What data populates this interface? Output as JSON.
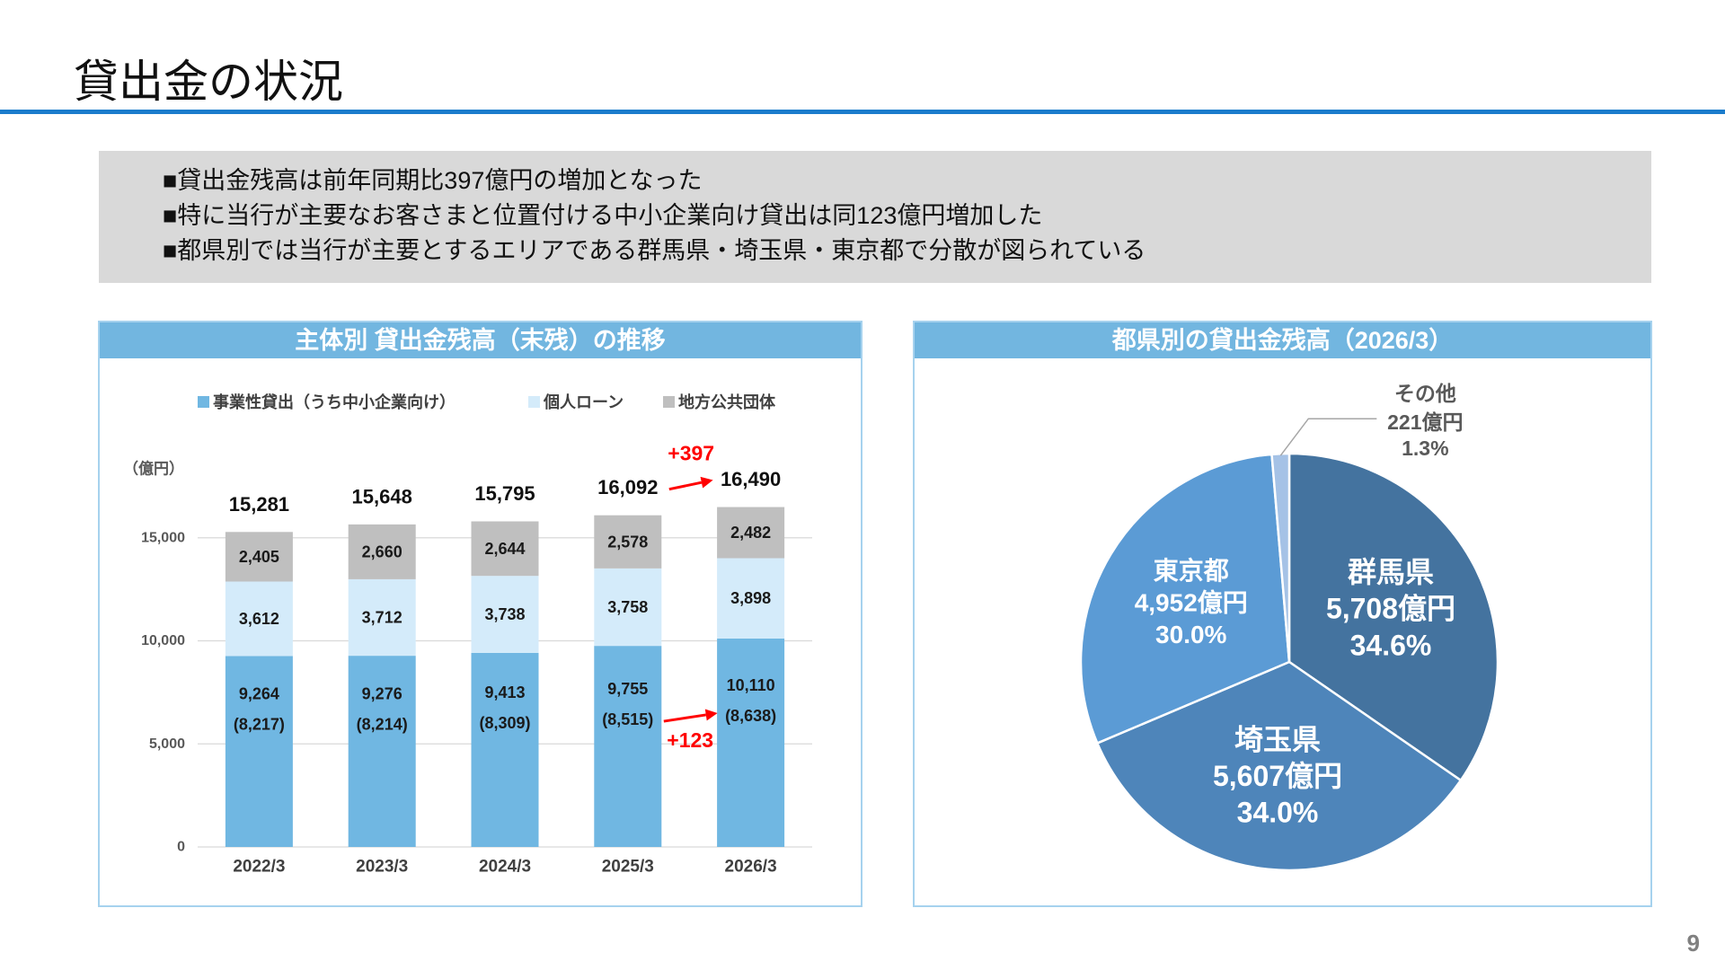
{
  "title": "貸出金の状況",
  "page_number": "9",
  "colors": {
    "accent": "#1b7ccc",
    "panel_header": "#72b6e0",
    "summary_background": "#d9d9d9"
  },
  "summary": {
    "lines": [
      "■貸出金残高は前年同期比397億円の増加となった",
      "■特に当行が主要なお客さまと位置付ける中小企業向け貸出は同123億円増加した",
      "■都県別では当行が主要とするエリアである群馬県・埼玉県・東京都で分散が図られている"
    ]
  },
  "chart_data": [
    {
      "type": "bar",
      "stacked": true,
      "title": "主体別 貸出金残高（末残）の推移",
      "y_unit": "（億円）",
      "categories": [
        "2022/3",
        "2023/3",
        "2024/3",
        "2025/3",
        "2026/3"
      ],
      "series": [
        {
          "name": "事業性貸出（うち中小企業向け）",
          "values": [
            9264,
            9276,
            9413,
            9755,
            10110
          ],
          "sub_values": [
            8217,
            8214,
            8309,
            8515,
            8638
          ],
          "color": "#70b7e2"
        },
        {
          "name": "個人ローン",
          "values": [
            3612,
            3712,
            3738,
            3758,
            3898
          ],
          "color": "#d4ebfa"
        },
        {
          "name": "地方公共団体",
          "values": [
            2405,
            2660,
            2644,
            2578,
            2482
          ],
          "color": "#bfbfbf"
        }
      ],
      "totals": [
        15281,
        15648,
        15795,
        16092,
        16490
      ],
      "ylim": [
        0,
        20000
      ],
      "yticks": [
        0,
        5000,
        10000,
        15000
      ],
      "grid": true,
      "legend_position": "top",
      "annotations": {
        "total_change": {
          "text": "+397",
          "from": "2025/3",
          "to": "2026/3",
          "color": "#ff0000"
        },
        "sme_change": {
          "text": "+123",
          "from": "2025/3",
          "to": "2026/3",
          "color": "#ff0000"
        }
      }
    },
    {
      "type": "pie",
      "title": "都県別の貸出金残高（2026/3）",
      "unit": "億円",
      "slices": [
        {
          "label": "群馬県",
          "value": 5708,
          "percent": 34.6,
          "color": "#44739f"
        },
        {
          "label": "埼玉県",
          "value": 5607,
          "percent": 34.0,
          "color": "#4e85ba"
        },
        {
          "label": "東京都",
          "value": 4952,
          "percent": 30.0,
          "color": "#5b9bd5"
        },
        {
          "label": "その他",
          "value": 221,
          "percent": 1.3,
          "color": "#a5c2e6"
        }
      ]
    }
  ]
}
